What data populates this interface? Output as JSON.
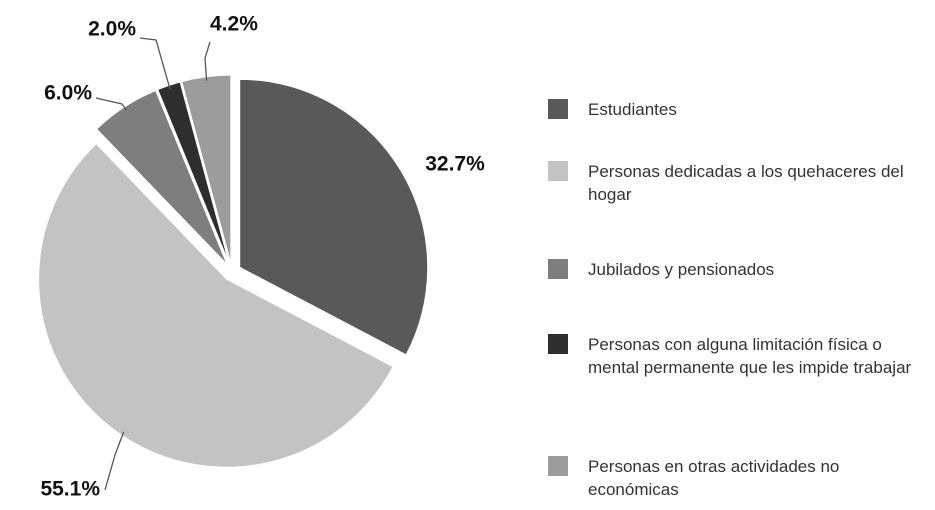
{
  "chart_data": {
    "type": "pie",
    "categories": [
      "Estudiantes",
      "Personas dedicadas a los quehaceres del hogar",
      "Jubilados y pensionados",
      "Personas con alguna limitación física o mental permanente que les impide trabajar",
      "Personas en otras actividades no económicas"
    ],
    "values": [
      32.7,
      55.1,
      6.0,
      2.0,
      4.2
    ],
    "value_labels": [
      "32.7%",
      "55.1%",
      "6.0%",
      "2.0%",
      "4.2%"
    ],
    "colors": [
      "#595959",
      "#c3c3c3",
      "#7e7e7e",
      "#2e2e2e",
      "#9c9c9c"
    ],
    "legend": "right"
  }
}
